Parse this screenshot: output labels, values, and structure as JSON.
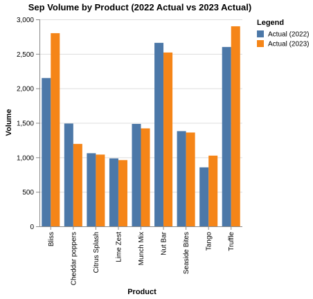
{
  "chart_data": {
    "type": "bar",
    "title": "Sep Volume by Product (2022 Actual vs 2023 Actual)",
    "xlabel": "Product",
    "ylabel": "Volume",
    "ylim": [
      0,
      3000
    ],
    "yticks": [
      "0",
      "500",
      "1,000",
      "1,500",
      "2,000",
      "2,500",
      "3,000"
    ],
    "ytick_values": [
      0,
      500,
      1000,
      1500,
      2000,
      2500,
      3000
    ],
    "grid": true,
    "legend": {
      "title": "Legend",
      "placement": "right"
    },
    "categories": [
      "Bliss",
      "Cheddar poppers",
      "Citrus Splash",
      "Lime Zest",
      "Munch Mix",
      "Nut Bar",
      "Seaside Bites",
      "Tango",
      "Truffle"
    ],
    "series": [
      {
        "name": "Actual (2022)",
        "color": "#4c78a8",
        "values": [
          2150,
          1490,
          1060,
          985,
          1485,
          2660,
          1380,
          855,
          2600
        ]
      },
      {
        "name": "Actual (2023)",
        "color": "#f58518",
        "values": [
          2800,
          1195,
          1040,
          960,
          1420,
          2520,
          1360,
          1025,
          2900
        ]
      }
    ]
  }
}
